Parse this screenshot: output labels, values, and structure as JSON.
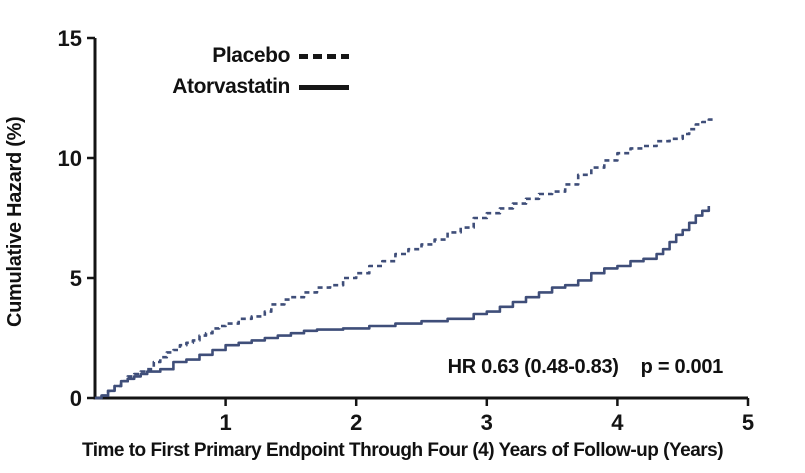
{
  "chart_data": {
    "type": "line",
    "subtype": "kaplan-meier-step",
    "title": "",
    "xlabel": "Time to First Primary Endpoint Through Four (4) Years of Follow-up (Years)",
    "ylabel": "Cumulative Hazard (%)",
    "xlim": [
      0,
      5
    ],
    "ylim": [
      0,
      15
    ],
    "x_ticks": [
      1,
      2,
      3,
      4,
      5
    ],
    "y_ticks": [
      0,
      5,
      10,
      15
    ],
    "grid": false,
    "legend_position": "top-left-inside",
    "annotations": [
      "HR 0.63 (0.48-0.83)",
      "p = 0.001"
    ],
    "colors": {
      "curve": "#3f4e79",
      "axis": "#141414",
      "legend_swatch": "#161616"
    },
    "series": [
      {
        "name": "Placebo",
        "style": "dashed",
        "color": "#3f4e79",
        "x": [
          0,
          0.05,
          0.1,
          0.15,
          0.2,
          0.25,
          0.3,
          0.35,
          0.4,
          0.45,
          0.5,
          0.55,
          0.6,
          0.65,
          0.7,
          0.75,
          0.8,
          0.85,
          0.9,
          0.95,
          1.0,
          1.1,
          1.2,
          1.3,
          1.35,
          1.45,
          1.5,
          1.6,
          1.7,
          1.8,
          1.9,
          2.0,
          2.1,
          2.2,
          2.3,
          2.4,
          2.5,
          2.6,
          2.7,
          2.8,
          2.9,
          3.0,
          3.1,
          3.2,
          3.3,
          3.4,
          3.5,
          3.6,
          3.7,
          3.8,
          3.9,
          4.0,
          4.1,
          4.2,
          4.3,
          4.4,
          4.5,
          4.55,
          4.6,
          4.65,
          4.7,
          4.75
        ],
        "y": [
          0,
          0.1,
          0.3,
          0.5,
          0.7,
          0.9,
          1.0,
          1.1,
          1.2,
          1.5,
          1.7,
          1.9,
          2.0,
          2.2,
          2.3,
          2.4,
          2.6,
          2.7,
          2.9,
          3.0,
          3.1,
          3.3,
          3.4,
          3.6,
          3.9,
          4.1,
          4.2,
          4.4,
          4.6,
          4.7,
          5.0,
          5.2,
          5.5,
          5.7,
          6.0,
          6.2,
          6.4,
          6.6,
          6.9,
          7.1,
          7.5,
          7.7,
          7.9,
          8.1,
          8.3,
          8.5,
          8.6,
          8.9,
          9.3,
          9.6,
          9.9,
          10.2,
          10.4,
          10.5,
          10.7,
          10.8,
          11.0,
          11.2,
          11.4,
          11.5,
          11.6,
          11.6
        ]
      },
      {
        "name": "Atorvastatin",
        "style": "solid",
        "color": "#3f4e79",
        "x": [
          0,
          0.05,
          0.1,
          0.15,
          0.2,
          0.25,
          0.3,
          0.35,
          0.4,
          0.5,
          0.6,
          0.7,
          0.8,
          0.9,
          1.0,
          1.1,
          1.2,
          1.3,
          1.4,
          1.5,
          1.6,
          1.7,
          1.9,
          2.1,
          2.3,
          2.5,
          2.7,
          2.9,
          3.0,
          3.1,
          3.2,
          3.3,
          3.4,
          3.5,
          3.6,
          3.7,
          3.8,
          3.9,
          4.0,
          4.1,
          4.2,
          4.3,
          4.35,
          4.4,
          4.45,
          4.5,
          4.55,
          4.6,
          4.65,
          4.7
        ],
        "y": [
          0,
          0.1,
          0.3,
          0.5,
          0.7,
          0.8,
          0.9,
          1.0,
          1.1,
          1.2,
          1.5,
          1.6,
          1.8,
          2.0,
          2.2,
          2.3,
          2.4,
          2.5,
          2.6,
          2.7,
          2.8,
          2.85,
          2.9,
          3.0,
          3.1,
          3.2,
          3.3,
          3.5,
          3.6,
          3.8,
          4.0,
          4.2,
          4.4,
          4.6,
          4.7,
          4.9,
          5.2,
          5.4,
          5.5,
          5.7,
          5.8,
          6.0,
          6.2,
          6.5,
          6.8,
          7.0,
          7.3,
          7.6,
          7.8,
          8.0
        ]
      }
    ]
  }
}
